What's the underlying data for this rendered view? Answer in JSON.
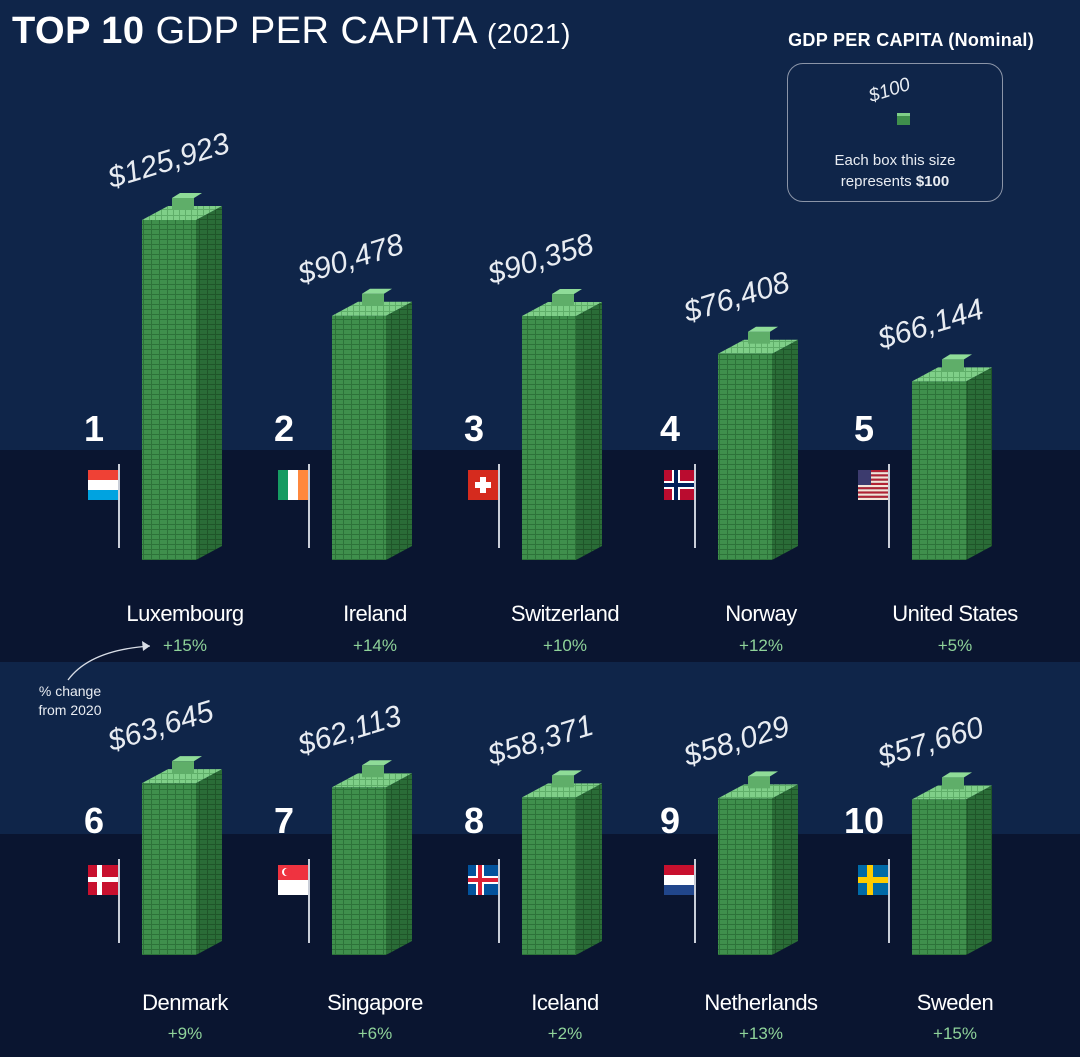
{
  "title": {
    "bold": "TOP 10",
    "main": "GDP PER CAPITA",
    "year": "(2021)"
  },
  "legend": {
    "title": "GDP PER CAPITA (Nominal)",
    "box_value": "$100",
    "line1": "Each box this size",
    "line2_prefix": "represents",
    "line2_value": "$100"
  },
  "note": {
    "line1": "% change",
    "line2": "from 2020"
  },
  "colors": {
    "background_top": "#0f2549",
    "background_band": "#0a1530",
    "bar_front": "#3f8f4c",
    "bar_side": "#2a6c37",
    "bar_top": "#7fcf88",
    "change_text": "#8fd39a"
  },
  "chart_data": {
    "type": "bar",
    "title": "TOP 10 GDP PER CAPITA (2021)",
    "unit": "USD, nominal",
    "box_unit_value": 100,
    "series": [
      {
        "rank": "1",
        "country": "Luxembourg",
        "value": 125923,
        "value_label": "$125,923",
        "change": "+15%",
        "flag": "luxembourg-flag"
      },
      {
        "rank": "2",
        "country": "Ireland",
        "value": 90478,
        "value_label": "$90,478",
        "change": "+14%",
        "flag": "ireland-flag"
      },
      {
        "rank": "3",
        "country": "Switzerland",
        "value": 90358,
        "value_label": "$90,358",
        "change": "+10%",
        "flag": "switzerland-flag"
      },
      {
        "rank": "4",
        "country": "Norway",
        "value": 76408,
        "value_label": "$76,408",
        "change": "+12%",
        "flag": "norway-flag"
      },
      {
        "rank": "5",
        "country": "United States",
        "value": 66144,
        "value_label": "$66,144",
        "change": "+5%",
        "flag": "united-states-flag"
      },
      {
        "rank": "6",
        "country": "Denmark",
        "value": 63645,
        "value_label": "$63,645",
        "change": "+9%",
        "flag": "denmark-flag"
      },
      {
        "rank": "7",
        "country": "Singapore",
        "value": 62113,
        "value_label": "$62,113",
        "change": "+6%",
        "flag": "singapore-flag"
      },
      {
        "rank": "8",
        "country": "Iceland",
        "value": 58371,
        "value_label": "$58,371",
        "change": "+2%",
        "flag": "iceland-flag"
      },
      {
        "rank": "9",
        "country": "Netherlands",
        "value": 58029,
        "value_label": "$58,029",
        "change": "+13%",
        "flag": "netherlands-flag"
      },
      {
        "rank": "10",
        "country": "Sweden",
        "value": 57660,
        "value_label": "$57,660",
        "change": "+15%",
        "flag": "sweden-flag"
      }
    ]
  }
}
